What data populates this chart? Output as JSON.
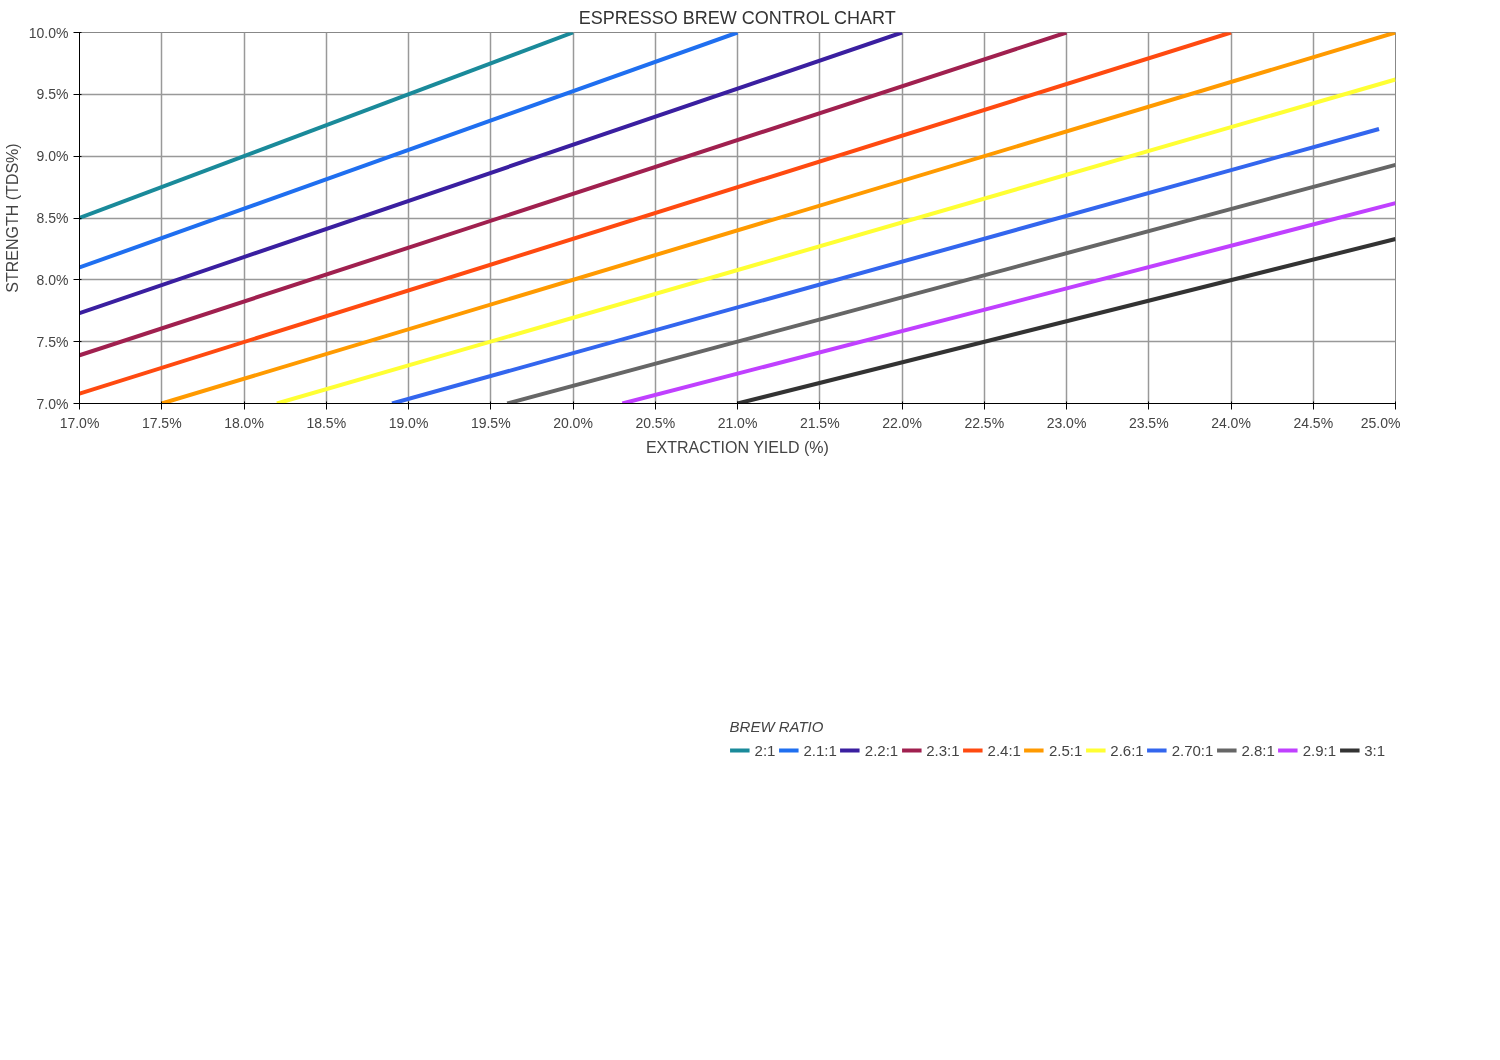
{
  "chart_data": {
    "type": "line",
    "title": "ESPRESSO BREW CONTROL CHART",
    "xlabel": "EXTRACTION YIELD (%)",
    "ylabel": "STRENGTH (TDS%)",
    "legend_title": "BREW RATIO",
    "legend": "bottom",
    "grid": true,
    "line_style": "solid",
    "marker": "none",
    "xlim": [
      17,
      25
    ],
    "ylim": [
      7,
      10
    ],
    "xticks": [
      {
        "value": 17,
        "label": "17.0%"
      },
      {
        "value": 17.5,
        "label": "17.5%"
      },
      {
        "value": 18,
        "label": "18.0%"
      },
      {
        "value": 18.5,
        "label": "18.5%"
      },
      {
        "value": 19,
        "label": "19.0%"
      },
      {
        "value": 19.5,
        "label": "19.5%"
      },
      {
        "value": 20,
        "label": "20.0%"
      },
      {
        "value": 20.5,
        "label": "20.5%"
      },
      {
        "value": 21,
        "label": "21.0%"
      },
      {
        "value": 21.5,
        "label": "21.5%"
      },
      {
        "value": 22,
        "label": "22.0%"
      },
      {
        "value": 22.5,
        "label": "22.5%"
      },
      {
        "value": 23,
        "label": "23.0%"
      },
      {
        "value": 23.5,
        "label": "23.5%"
      },
      {
        "value": 24,
        "label": "24.0%"
      },
      {
        "value": 24.5,
        "label": "24.5%"
      },
      {
        "value": 25,
        "label": "25.0%"
      }
    ],
    "yticks": [
      {
        "value": 7,
        "label": "7.0%"
      },
      {
        "value": 7.5,
        "label": "7.5%"
      },
      {
        "value": 8,
        "label": "8.0%"
      },
      {
        "value": 8.5,
        "label": "8.5%"
      },
      {
        "value": 9,
        "label": "9.0%"
      },
      {
        "value": 9.5,
        "label": "9.5%"
      },
      {
        "value": 10,
        "label": "10.0%"
      }
    ],
    "series": [
      {
        "name": "2:1",
        "color": "#1a8a9a",
        "x": [
          17,
          20
        ],
        "values": [
          8.5,
          10
        ]
      },
      {
        "name": "2.1:1",
        "color": "#1f6ff0",
        "x": [
          17,
          21
        ],
        "values": [
          8.1,
          10
        ]
      },
      {
        "name": "2.2:1",
        "color": "#3a1fa0",
        "x": [
          17,
          22
        ],
        "values": [
          7.73,
          10
        ]
      },
      {
        "name": "2.3:1",
        "color": "#a0204f",
        "x": [
          17,
          23
        ],
        "values": [
          7.39,
          10
        ]
      },
      {
        "name": "2.4:1",
        "color": "#ff4a10",
        "x": [
          17,
          24
        ],
        "values": [
          7.08,
          10
        ]
      },
      {
        "name": "2.5:1",
        "color": "#ff9a00",
        "x": [
          17.5,
          25
        ],
        "values": [
          7,
          10
        ]
      },
      {
        "name": "2.6:1",
        "color": "#ffff33",
        "x": [
          18.2,
          25
        ],
        "values": [
          7,
          9.62
        ]
      },
      {
        "name": "2.70:1",
        "color": "#3366ee",
        "x": [
          18.9,
          24.9
        ],
        "values": [
          7,
          9.22
        ]
      },
      {
        "name": "2.8:1",
        "color": "#666666",
        "x": [
          19.6,
          25
        ],
        "values": [
          7,
          8.93
        ]
      },
      {
        "name": "2.9:1",
        "color": "#c040ff",
        "x": [
          20.3,
          25
        ],
        "values": [
          7,
          8.62
        ]
      },
      {
        "name": "3:1",
        "color": "#333333",
        "x": [
          21,
          25
        ],
        "values": [
          7,
          8.33
        ]
      }
    ]
  }
}
